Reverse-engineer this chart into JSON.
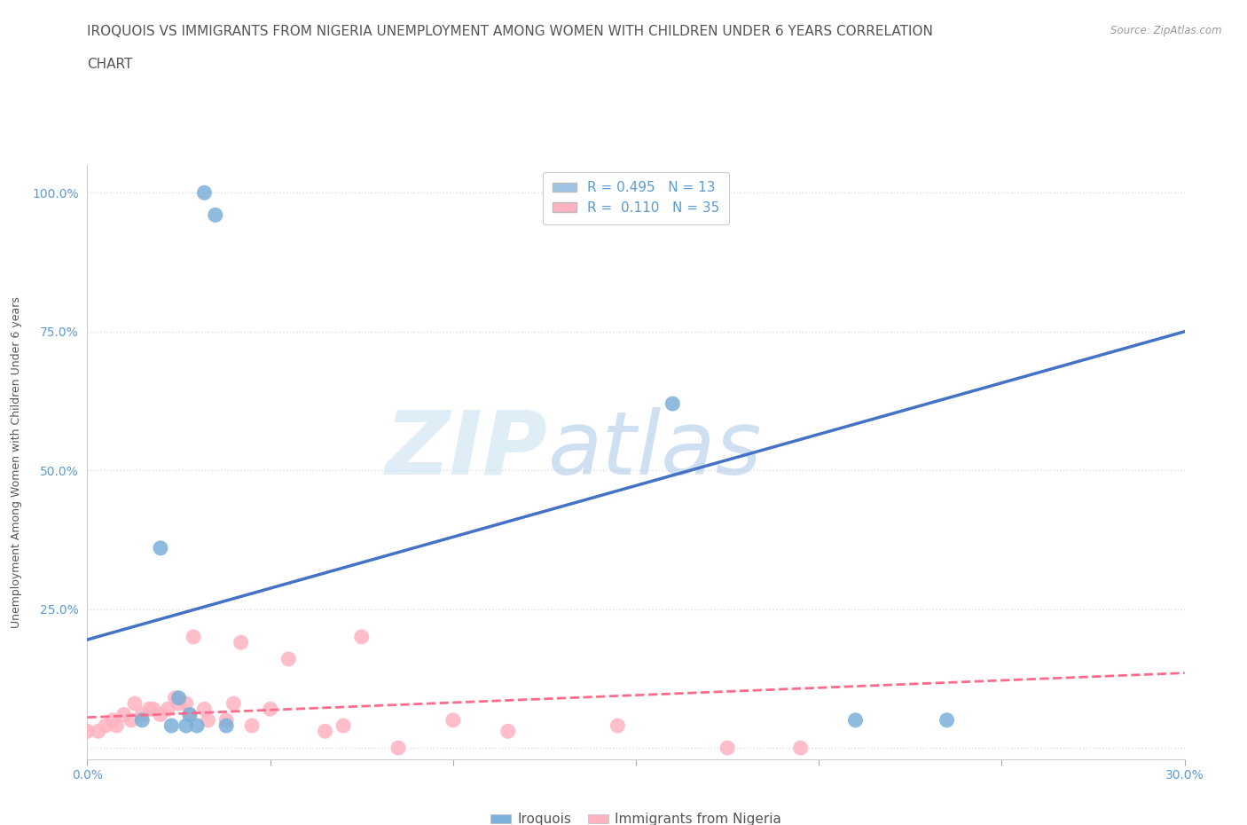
{
  "title_line1": "IROQUOIS VS IMMIGRANTS FROM NIGERIA UNEMPLOYMENT AMONG WOMEN WITH CHILDREN UNDER 6 YEARS CORRELATION",
  "title_line2": "CHART",
  "source": "Source: ZipAtlas.com",
  "ylabel": "Unemployment Among Women with Children Under 6 years",
  "xlim": [
    0.0,
    0.3
  ],
  "ylim": [
    -0.02,
    1.05
  ],
  "y_ticks": [
    0.0,
    0.25,
    0.5,
    0.75,
    1.0
  ],
  "y_tick_labels": [
    "",
    "25.0%",
    "50.0%",
    "75.0%",
    "100.0%"
  ],
  "background_color": "#ffffff",
  "grid_color": "#dddddd",
  "legend_r1": "R = 0.495   N = 13",
  "legend_r2": "R =  0.110   N = 35",
  "legend_color1": "#9dc3e6",
  "legend_color2": "#ffb3c1",
  "watermark_text": "ZIP",
  "watermark_text2": "atlas",
  "iroquois_color": "#7ab0d9",
  "nigeria_color": "#ffb3c1",
  "iroquois_line_color": "#4472c4",
  "nigeria_line_color": "#ff6b8a",
  "iroquois_x": [
    0.015,
    0.02,
    0.023,
    0.025,
    0.027,
    0.028,
    0.03,
    0.032,
    0.035,
    0.038,
    0.16,
    0.21,
    0.235
  ],
  "iroquois_y": [
    0.05,
    0.36,
    0.04,
    0.09,
    0.04,
    0.06,
    0.04,
    1.0,
    0.96,
    0.04,
    0.62,
    0.05,
    0.05
  ],
  "nigeria_x": [
    0.0,
    0.003,
    0.005,
    0.007,
    0.008,
    0.01,
    0.012,
    0.013,
    0.015,
    0.017,
    0.018,
    0.02,
    0.022,
    0.024,
    0.025,
    0.027,
    0.028,
    0.029,
    0.032,
    0.033,
    0.038,
    0.04,
    0.042,
    0.045,
    0.05,
    0.055,
    0.065,
    0.07,
    0.075,
    0.085,
    0.1,
    0.115,
    0.145,
    0.175,
    0.195
  ],
  "nigeria_y": [
    0.03,
    0.03,
    0.04,
    0.05,
    0.04,
    0.06,
    0.05,
    0.08,
    0.06,
    0.07,
    0.07,
    0.06,
    0.07,
    0.09,
    0.08,
    0.08,
    0.06,
    0.2,
    0.07,
    0.05,
    0.05,
    0.08,
    0.19,
    0.04,
    0.07,
    0.16,
    0.03,
    0.04,
    0.2,
    0.0,
    0.05,
    0.03,
    0.04,
    0.0,
    0.0
  ],
  "iroquois_line_x": [
    0.0,
    0.3
  ],
  "iroquois_line_y": [
    0.195,
    0.75
  ],
  "nigeria_line_x": [
    0.0,
    0.3
  ],
  "nigeria_line_y": [
    0.055,
    0.135
  ],
  "title_fontsize": 11,
  "axis_label_fontsize": 9,
  "tick_fontsize": 10,
  "legend_fontsize": 11
}
